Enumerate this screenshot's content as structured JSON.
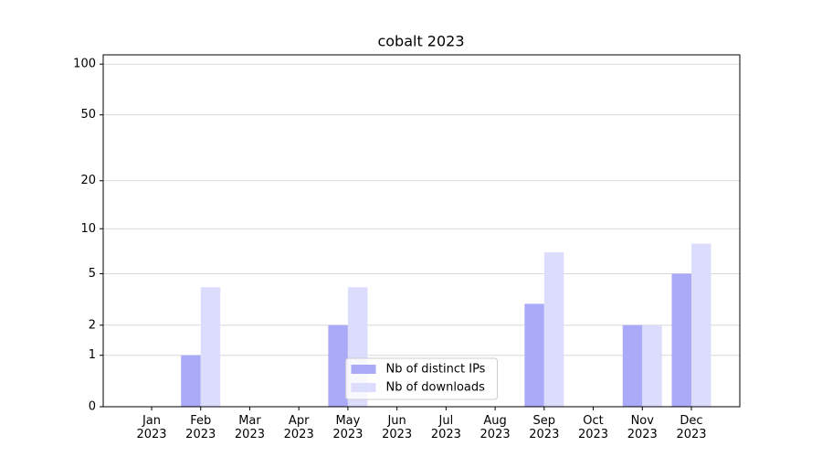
{
  "chart_data": {
    "type": "bar",
    "title": "cobalt 2023",
    "categories": [
      "Jan\n2023",
      "Feb\n2023",
      "Mar\n2023",
      "Apr\n2023",
      "May\n2023",
      "Jun\n2023",
      "Jul\n2023",
      "Aug\n2023",
      "Sep\n2023",
      "Oct\n2023",
      "Nov\n2023",
      "Dec\n2023"
    ],
    "series": [
      {
        "name": "Nb of distinct IPs",
        "color": "#aaaaf8",
        "values": [
          0,
          1,
          0,
          0,
          2,
          0,
          0,
          0,
          3,
          0,
          2,
          5
        ]
      },
      {
        "name": "Nb of downloads",
        "color": "#dcdcfc",
        "values": [
          0,
          4,
          0,
          0,
          4,
          0,
          0,
          0,
          7,
          0,
          2,
          8
        ]
      }
    ],
    "yscale": "log1p",
    "ylim": [
      0,
      113.5
    ],
    "yticks": [
      0,
      1,
      2,
      5,
      10,
      20,
      50,
      100
    ],
    "grid": true,
    "legend": "lower center"
  }
}
